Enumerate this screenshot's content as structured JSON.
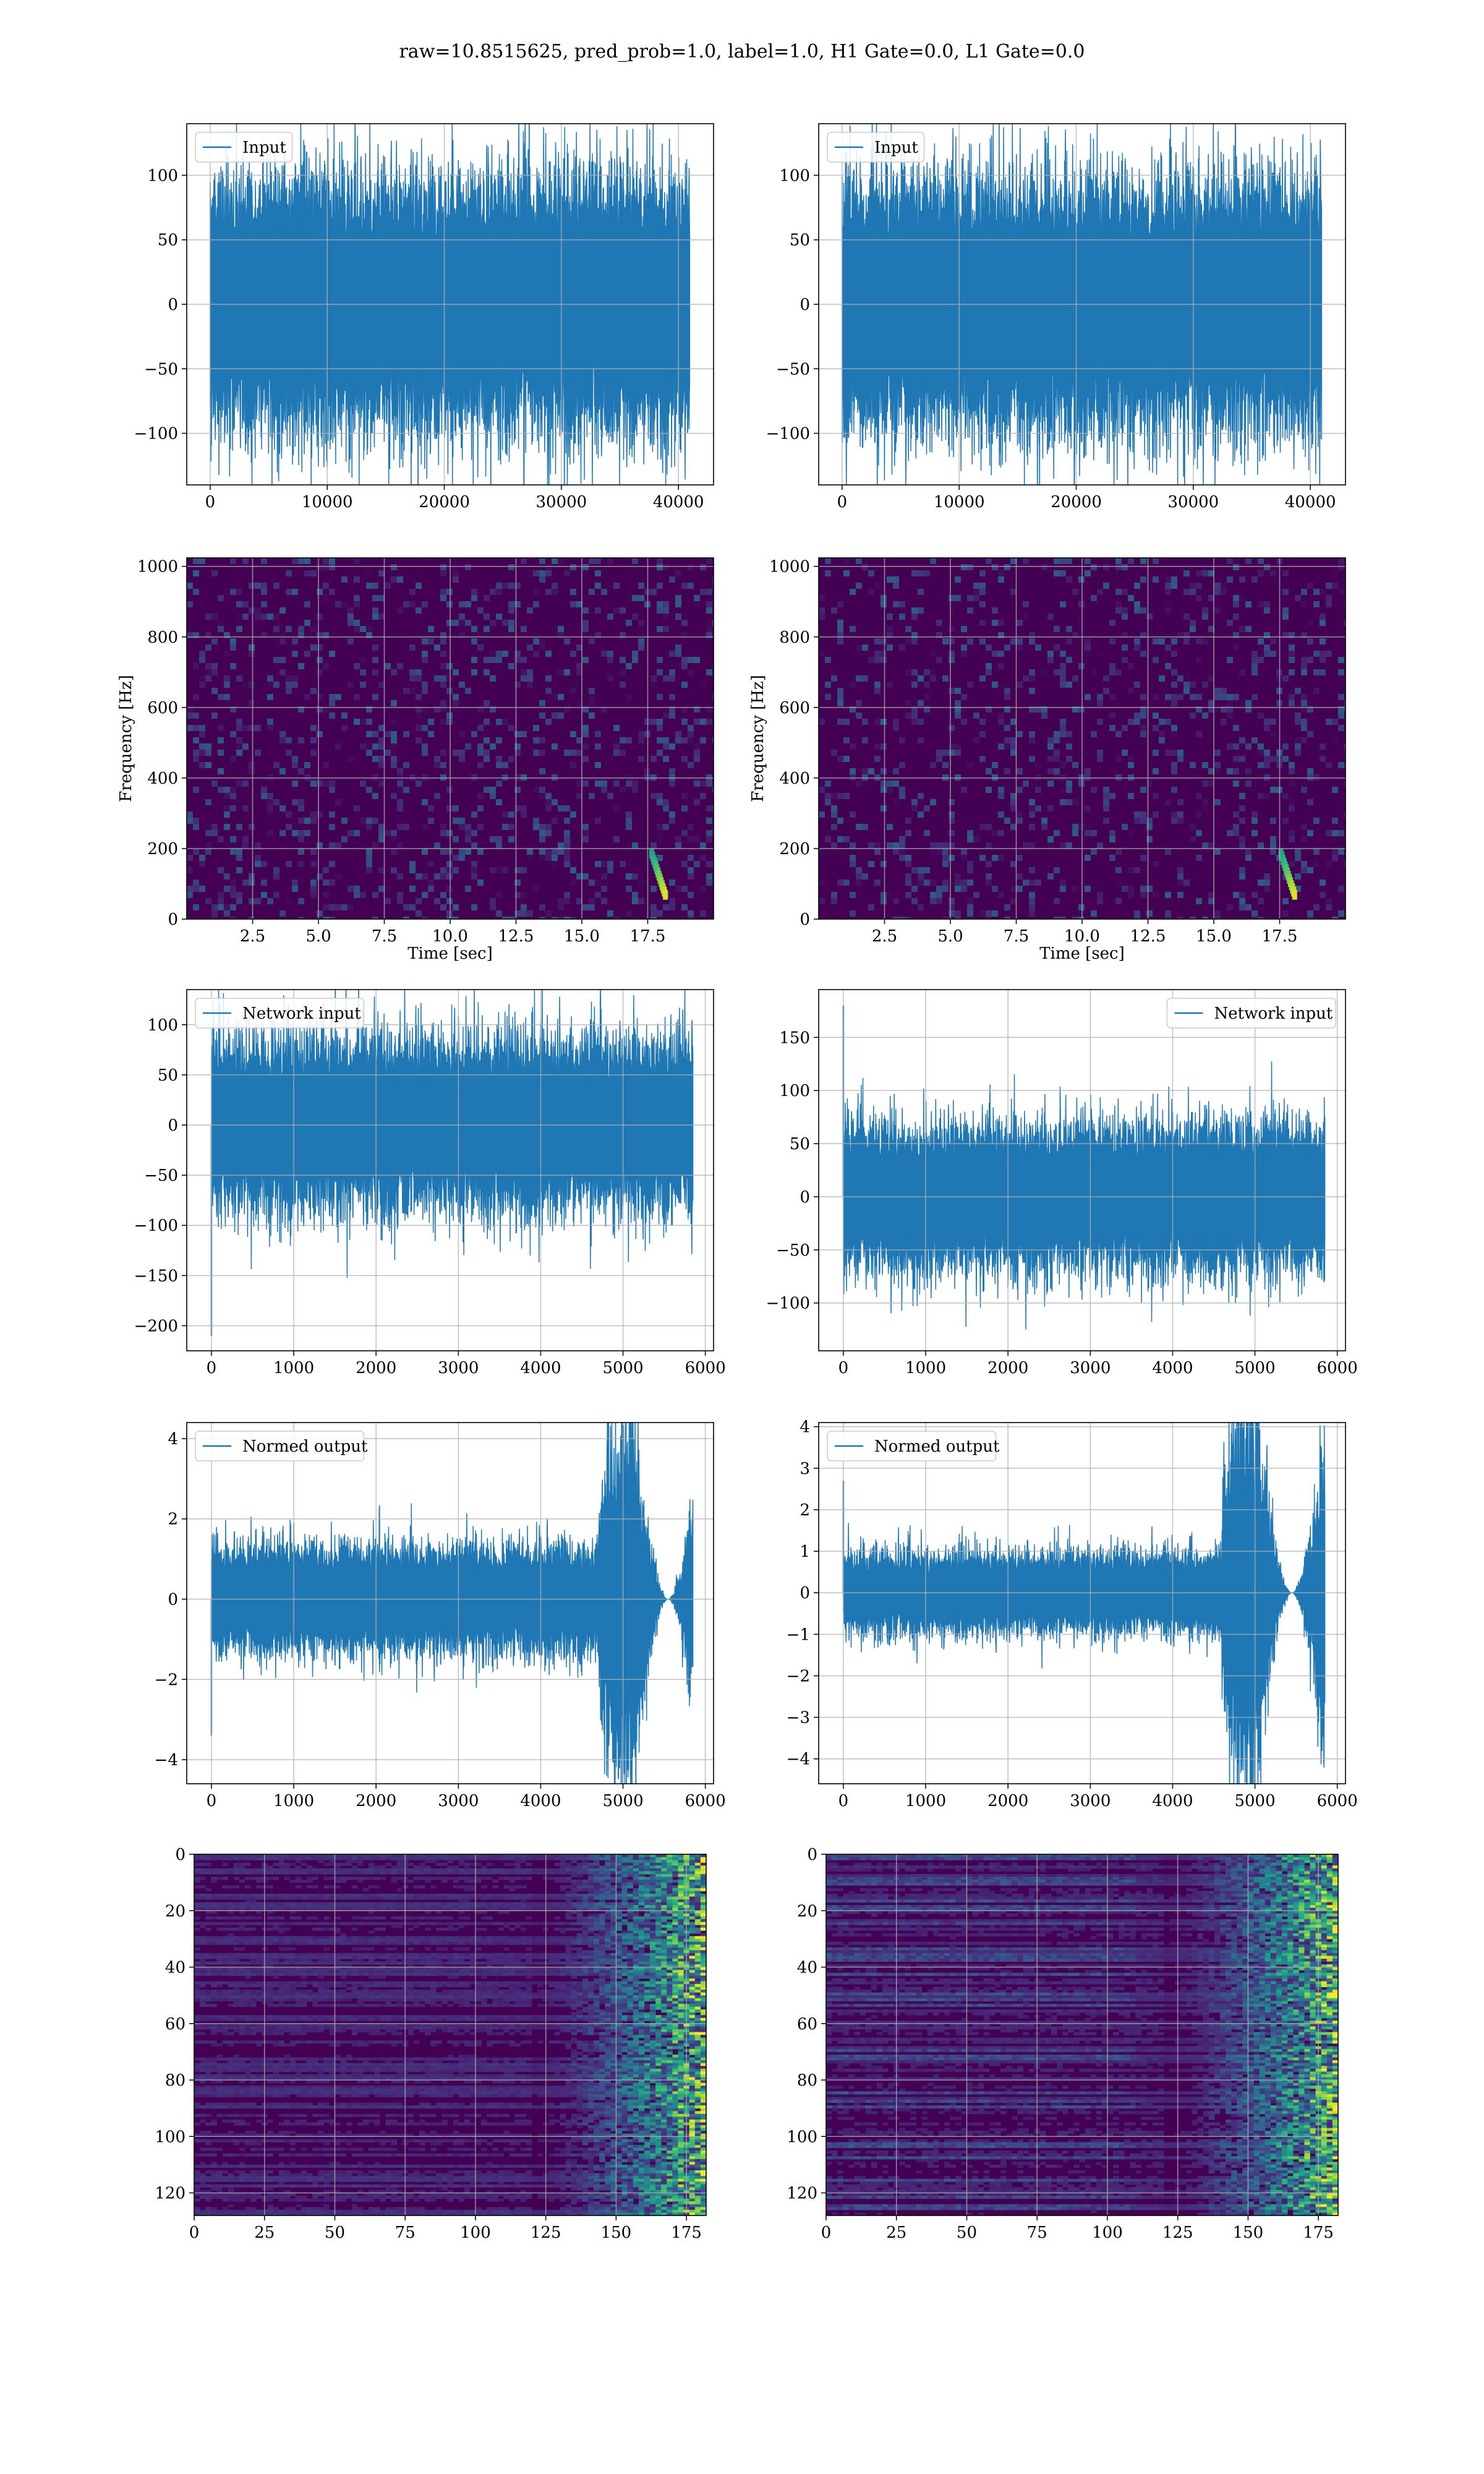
{
  "title": "raw=10.8515625, pred_prob=1.0, label=1.0, H1 Gate=0.0, L1 Gate=0.0",
  "colors": {
    "line": "#1f77b4",
    "grid": "#b0b0b0",
    "viridis_dark": "#440154"
  },
  "chart_data": [
    {
      "id": "input-h1",
      "type": "line",
      "grid": true,
      "legend": "upper left",
      "series": [
        {
          "name": "Input",
          "n": 40960,
          "amplitude": 40
        }
      ],
      "xlim": [
        -2000,
        43000
      ],
      "ylim": [
        -140,
        140
      ],
      "xticks": [
        0,
        10000,
        20000,
        30000,
        40000
      ],
      "yticks": [
        -100,
        -50,
        0,
        50,
        100
      ]
    },
    {
      "id": "input-l1",
      "type": "line",
      "grid": true,
      "legend": "upper left",
      "series": [
        {
          "name": "Input",
          "n": 40960,
          "amplitude": 40
        }
      ],
      "xlim": [
        -2000,
        43000
      ],
      "ylim": [
        -140,
        140
      ],
      "xticks": [
        0,
        10000,
        20000,
        30000,
        40000
      ],
      "yticks": [
        -100,
        -50,
        0,
        50,
        100
      ]
    },
    {
      "id": "spec-h1",
      "type": "heatmap",
      "grid": true,
      "xlabel": "Time [sec]",
      "ylabel": "Frequency [Hz]",
      "xlim": [
        0,
        20
      ],
      "ylim": [
        0,
        1024
      ],
      "xticks": [
        2.5,
        5.0,
        7.5,
        10.0,
        12.5,
        15.0,
        17.5
      ],
      "yticks": [
        0,
        200,
        400,
        600,
        800,
        1000
      ],
      "chirp": {
        "t_end": 18.2,
        "f_end": 60
      }
    },
    {
      "id": "spec-l1",
      "type": "heatmap",
      "grid": true,
      "xlabel": "Time [sec]",
      "ylabel": "Frequency [Hz]",
      "xlim": [
        0,
        20
      ],
      "ylim": [
        0,
        1024
      ],
      "xticks": [
        2.5,
        5.0,
        7.5,
        10.0,
        12.5,
        15.0,
        17.5
      ],
      "yticks": [
        0,
        200,
        400,
        600,
        800,
        1000
      ],
      "chirp": {
        "t_end": 18.1,
        "f_end": 60
      }
    },
    {
      "id": "network-h1",
      "type": "line",
      "grid": true,
      "legend": "upper left",
      "series": [
        {
          "name": "Network input",
          "n": 5850,
          "amplitude": 35,
          "first": -210
        }
      ],
      "xlim": [
        -300,
        6100
      ],
      "ylim": [
        -225,
        135
      ],
      "xticks": [
        0,
        1000,
        2000,
        3000,
        4000,
        5000,
        6000
      ],
      "yticks": [
        -200,
        -150,
        -100,
        -50,
        0,
        50,
        100
      ]
    },
    {
      "id": "network-l1",
      "type": "line",
      "grid": true,
      "legend": "upper right",
      "series": [
        {
          "name": "Network input",
          "n": 5850,
          "amplitude": 28,
          "first": 180
        }
      ],
      "xlim": [
        -300,
        6100
      ],
      "ylim": [
        -145,
        195
      ],
      "xticks": [
        0,
        1000,
        2000,
        3000,
        4000,
        5000,
        6000
      ],
      "yticks": [
        -100,
        -50,
        0,
        50,
        100,
        150
      ]
    },
    {
      "id": "normed-h1",
      "type": "line",
      "grid": true,
      "legend": "upper left",
      "series": [
        {
          "name": "Normed output",
          "n": 5850,
          "amplitude": 0.55,
          "first": -3.4,
          "burst_start": 4700,
          "burst_amplitude": 1.6
        }
      ],
      "xlim": [
        -300,
        6100
      ],
      "ylim": [
        -4.6,
        4.4
      ],
      "xticks": [
        0,
        1000,
        2000,
        3000,
        4000,
        5000,
        6000
      ],
      "yticks": [
        -4,
        -2,
        0,
        2,
        4
      ]
    },
    {
      "id": "normed-l1",
      "type": "line",
      "grid": true,
      "legend": "upper left",
      "series": [
        {
          "name": "Normed output",
          "n": 5850,
          "amplitude": 0.4,
          "first": 2.7,
          "burst_start": 4600,
          "burst_amplitude": 1.6
        }
      ],
      "xlim": [
        -300,
        6100
      ],
      "ylim": [
        -4.6,
        4.1
      ],
      "xticks": [
        0,
        1000,
        2000,
        3000,
        4000,
        5000,
        6000
      ],
      "yticks": [
        -4,
        -3,
        -2,
        -1,
        0,
        1,
        2,
        3,
        4
      ]
    },
    {
      "id": "feature-h1",
      "type": "heatmap",
      "grid": true,
      "xlim": [
        0,
        182
      ],
      "ylim": [
        128,
        0
      ],
      "rows": 128,
      "cols": 182,
      "xticks": [
        0,
        25,
        50,
        75,
        100,
        125,
        150,
        175
      ],
      "yticks": [
        0,
        20,
        40,
        60,
        80,
        100,
        120
      ]
    },
    {
      "id": "feature-l1",
      "type": "heatmap",
      "grid": true,
      "xlim": [
        0,
        182
      ],
      "ylim": [
        128,
        0
      ],
      "rows": 128,
      "cols": 182,
      "xticks": [
        0,
        25,
        50,
        75,
        100,
        125,
        150,
        175
      ],
      "yticks": [
        0,
        20,
        40,
        60,
        80,
        100,
        120
      ]
    }
  ]
}
